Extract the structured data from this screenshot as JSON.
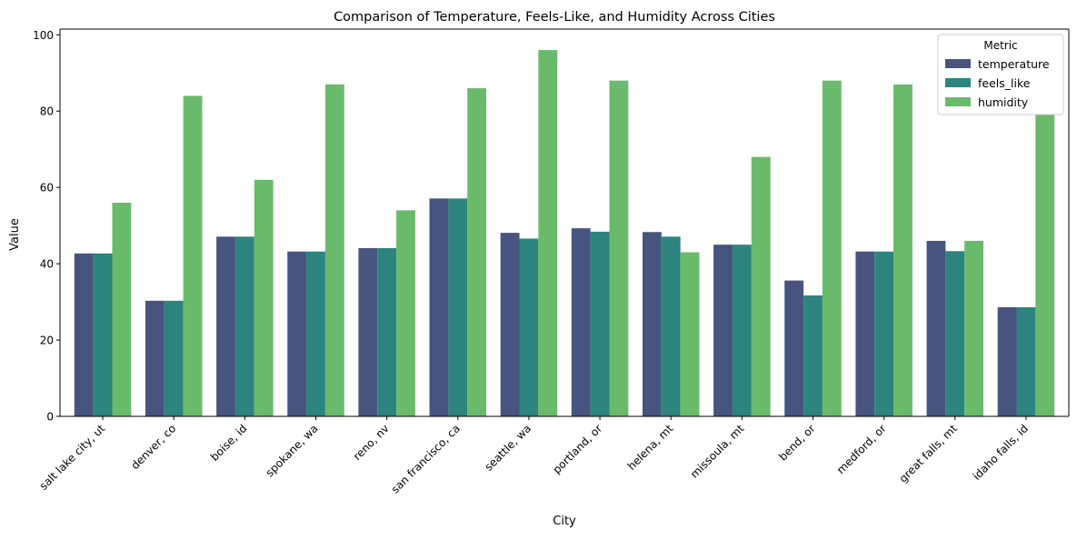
{
  "chart_data": {
    "type": "bar",
    "title": "Comparison of Temperature, Feels-Like, and Humidity Across Cities",
    "xlabel": "City",
    "ylabel": "Value",
    "ylim": [
      0,
      100
    ],
    "yticks": [
      0,
      20,
      40,
      60,
      80,
      100
    ],
    "grid": false,
    "legend": {
      "title": "Metric",
      "placement": "top-right"
    },
    "categories": [
      "salt lake city, ut",
      "denver, co",
      "boise, id",
      "spokane, wa",
      "reno, nv",
      "san francisco, ca",
      "seattle, wa",
      "portland, or",
      "helena, mt",
      "missoula, mt",
      "bend, or",
      "medford, or",
      "great falls, mt",
      "idaho falls, id"
    ],
    "series": [
      {
        "name": "temperature",
        "color": "#46547f",
        "values": [
          42.7,
          30.3,
          47.1,
          43.2,
          44.1,
          57.1,
          48.1,
          49.3,
          48.3,
          45.0,
          35.6,
          43.2,
          46.0,
          28.6
        ]
      },
      {
        "name": "feels_like",
        "color": "#2d847e",
        "values": [
          42.7,
          30.3,
          47.1,
          43.2,
          44.1,
          57.1,
          46.6,
          48.4,
          47.1,
          45.0,
          31.7,
          43.2,
          43.3,
          28.6
        ]
      },
      {
        "name": "humidity",
        "color": "#6aba6b",
        "values": [
          56,
          84,
          62,
          87,
          54,
          86,
          96,
          88,
          43,
          68,
          88,
          87,
          46,
          79
        ]
      }
    ]
  }
}
